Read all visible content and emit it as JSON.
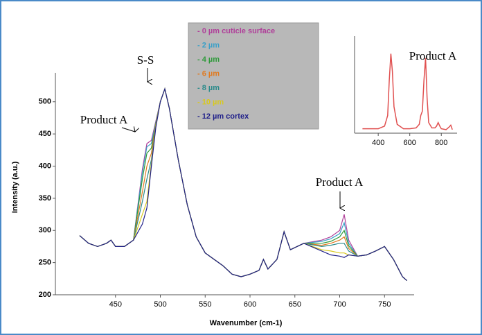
{
  "chart_data": [
    {
      "type": "line",
      "x_label": "Wavenumber (cm-1)",
      "y_label": "Intensity (a.u.)",
      "x": [
        410,
        420,
        430,
        440,
        445,
        450,
        460,
        470,
        480,
        485,
        490,
        495,
        500,
        505,
        510,
        520,
        530,
        540,
        550,
        560,
        570,
        580,
        590,
        600,
        610,
        615,
        620,
        630,
        638,
        645,
        660,
        680,
        690,
        700,
        705,
        710,
        720,
        730,
        740,
        750,
        760,
        770,
        775
      ],
      "xlim": [
        383,
        783
      ],
      "xticks": [
        450,
        500,
        550,
        600,
        650,
        700,
        750
      ],
      "ylim": [
        200,
        545
      ],
      "yticks": [
        200,
        250,
        300,
        350,
        400,
        450,
        500
      ],
      "grid": false,
      "series": [
        {
          "name": "- 0 µm cuticle surface",
          "color": "#b0409a",
          "values": [
            292,
            280,
            275,
            280,
            285,
            275,
            275,
            285,
            395,
            435,
            440,
            470,
            500,
            520,
            490,
            410,
            340,
            290,
            265,
            255,
            245,
            232,
            228,
            232,
            238,
            255,
            240,
            255,
            298,
            270,
            280,
            285,
            290,
            300,
            325,
            285,
            260,
            262,
            268,
            275,
            255,
            228,
            222
          ]
        },
        {
          "name": "- 2 µm",
          "color": "#3aa0c8",
          "values": [
            292,
            280,
            275,
            280,
            285,
            275,
            275,
            285,
            390,
            430,
            435,
            468,
            500,
            520,
            490,
            410,
            340,
            290,
            265,
            255,
            245,
            232,
            228,
            232,
            238,
            255,
            240,
            255,
            298,
            270,
            280,
            283,
            287,
            295,
            312,
            280,
            260,
            262,
            268,
            275,
            255,
            228,
            222
          ]
        },
        {
          "name": "- 4 µm",
          "color": "#2e9a3a",
          "values": [
            292,
            280,
            275,
            280,
            285,
            275,
            275,
            285,
            380,
            420,
            428,
            466,
            500,
            520,
            490,
            410,
            340,
            290,
            265,
            255,
            245,
            232,
            228,
            232,
            238,
            255,
            240,
            255,
            298,
            270,
            280,
            280,
            283,
            290,
            300,
            276,
            260,
            262,
            268,
            275,
            255,
            228,
            222
          ]
        },
        {
          "name": "- 6 µm",
          "color": "#e07a20",
          "values": [
            292,
            280,
            275,
            280,
            285,
            275,
            275,
            285,
            360,
            400,
            420,
            465,
            500,
            520,
            490,
            410,
            340,
            290,
            265,
            255,
            245,
            232,
            228,
            232,
            238,
            255,
            240,
            255,
            298,
            270,
            280,
            277,
            280,
            285,
            290,
            272,
            260,
            262,
            268,
            275,
            255,
            228,
            222
          ]
        },
        {
          "name": "- 8 µm",
          "color": "#2a8a8a",
          "values": [
            292,
            280,
            275,
            280,
            285,
            275,
            275,
            285,
            345,
            380,
            410,
            463,
            500,
            520,
            490,
            410,
            340,
            290,
            265,
            255,
            245,
            232,
            228,
            232,
            238,
            255,
            240,
            255,
            298,
            270,
            280,
            275,
            277,
            280,
            280,
            268,
            260,
            262,
            268,
            275,
            255,
            228,
            222
          ]
        },
        {
          "name": "- 10 µm",
          "color": "#d8c820",
          "values": [
            292,
            280,
            275,
            280,
            285,
            275,
            275,
            285,
            325,
            345,
            405,
            462,
            500,
            520,
            490,
            410,
            340,
            290,
            265,
            255,
            245,
            232,
            228,
            232,
            238,
            255,
            240,
            255,
            298,
            270,
            280,
            270,
            268,
            265,
            265,
            262,
            260,
            262,
            268,
            275,
            255,
            228,
            222
          ]
        },
        {
          "name": "- 12 µm cortex",
          "color": "#20208a",
          "values": [
            292,
            280,
            275,
            280,
            285,
            275,
            275,
            285,
            310,
            335,
            400,
            460,
            500,
            520,
            490,
            410,
            340,
            290,
            265,
            255,
            245,
            232,
            228,
            232,
            238,
            255,
            240,
            255,
            298,
            270,
            280,
            268,
            262,
            260,
            258,
            262,
            260,
            262,
            268,
            275,
            255,
            228,
            222
          ]
        }
      ],
      "annotations": [
        "S-S",
        "Product A",
        "Product A"
      ]
    },
    {
      "type": "line",
      "x": [
        300,
        400,
        440,
        460,
        470,
        480,
        490,
        500,
        520,
        560,
        600,
        640,
        660,
        670,
        680,
        690,
        700,
        710,
        720,
        740,
        760,
        770,
        780,
        790,
        800,
        830,
        850,
        860,
        870
      ],
      "xlim": [
        250,
        900
      ],
      "xticks": [
        400,
        600,
        800
      ],
      "ylim": [
        0,
        110
      ],
      "series": [
        {
          "color": "#e05050",
          "values": [
            5,
            5,
            8,
            20,
            60,
            90,
            70,
            30,
            10,
            5,
            5,
            6,
            10,
            20,
            25,
            60,
            85,
            40,
            12,
            6,
            6,
            8,
            12,
            8,
            5,
            4,
            7,
            9,
            4
          ]
        }
      ],
      "annotations": [
        "Product A"
      ]
    }
  ]
}
